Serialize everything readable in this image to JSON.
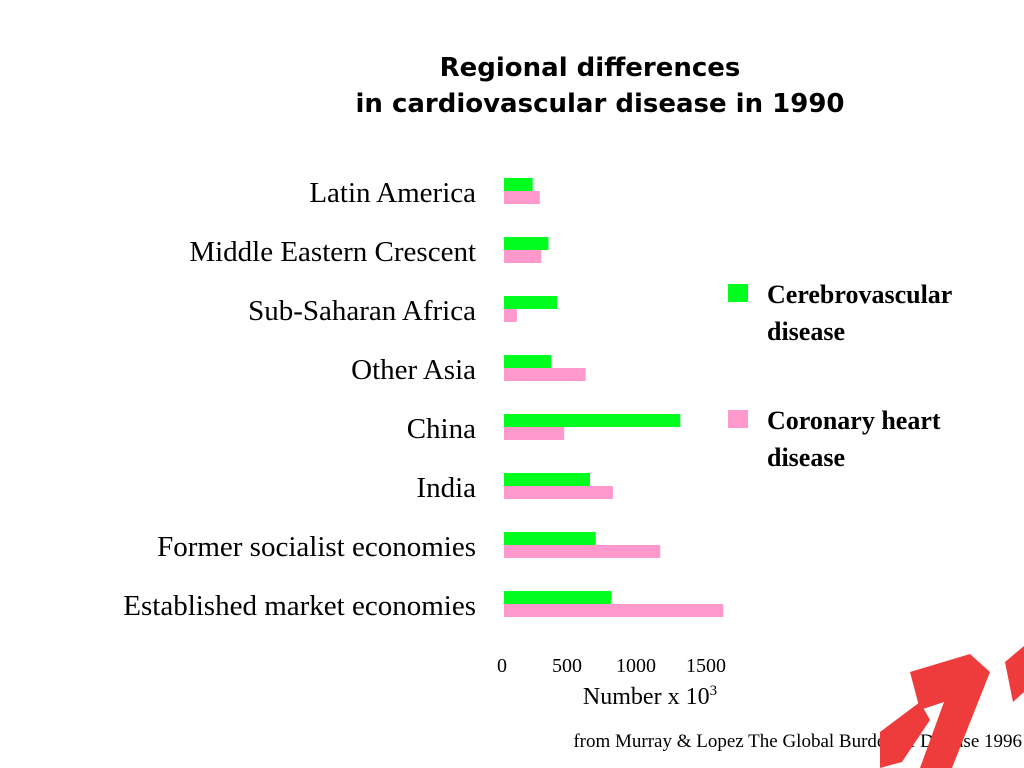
{
  "slide": {
    "title_line1": "Regional differences",
    "title_line2": "in cardiovascular disease in 1990",
    "source": "from Murray & Lopez The Global Burden of Disease 1996",
    "xlabel_text": "Number x 10",
    "xlabel_sup": "3"
  },
  "legend": [
    {
      "label": "Cerebrovascular disease",
      "color": "#00ff1e"
    },
    {
      "label": "Coronary heart disease",
      "color": "#ff99cc"
    }
  ],
  "chart_data": {
    "type": "bar",
    "orientation": "horizontal",
    "title": "Regional differences in cardiovascular disease in 1990",
    "xlabel": "Number x 10^3",
    "xlim": [
      0,
      1500
    ],
    "xticks": [
      0,
      500,
      1000,
      1500
    ],
    "categories": [
      "Latin America",
      "Middle Eastern Crescent",
      "Sub-Saharan Africa",
      "Other Asia",
      "China",
      "India",
      "Former socialist economies",
      "Established market economies"
    ],
    "series": [
      {
        "name": "Cerebrovascular disease",
        "color": "#00ff1e",
        "values": [
          200,
          310,
          370,
          330,
          1230,
          600,
          640,
          750
        ]
      },
      {
        "name": "Coronary heart disease",
        "color": "#ff99cc",
        "values": [
          250,
          260,
          90,
          570,
          420,
          760,
          1090,
          1530
        ]
      }
    ],
    "legend_position": "right",
    "grid": false
  }
}
